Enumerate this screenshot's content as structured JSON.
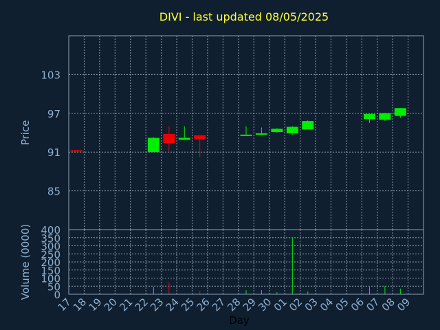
{
  "chart_data": [
    {
      "type": "candlestick",
      "title": "DIVI - last updated 08/05/2025",
      "xlabel": "Day",
      "ylabel": "Price",
      "ylim": [
        79,
        109
      ],
      "yticks": [
        85,
        91,
        97,
        103
      ],
      "grid": true,
      "x_categories": [
        "17",
        "18",
        "19",
        "20",
        "21",
        "22",
        "23",
        "24",
        "25",
        "26",
        "27",
        "28",
        "29",
        "30",
        "01",
        "02",
        "03",
        "04",
        "05",
        "06",
        "07",
        "08",
        "09"
      ],
      "candles": [
        {
          "x": "17",
          "open": 91.3,
          "close": 91.1,
          "high": 91.3,
          "low": 91.1
        },
        {
          "x": "22",
          "open": 91.0,
          "close": 93.2,
          "high": 93.3,
          "low": 91.0
        },
        {
          "x": "23",
          "open": 93.8,
          "close": 92.4,
          "high": 95.0,
          "low": 91.0
        },
        {
          "x": "24",
          "open": 92.9,
          "close": 93.2,
          "high": 95.0,
          "low": 92.9
        },
        {
          "x": "25",
          "open": 93.6,
          "close": 93.0,
          "high": 93.6,
          "low": 90.2
        },
        {
          "x": "28",
          "open": 93.5,
          "close": 93.7,
          "high": 95.0,
          "low": 93.5
        },
        {
          "x": "29",
          "open": 93.7,
          "close": 93.9,
          "high": 94.8,
          "low": 93.6
        },
        {
          "x": "30",
          "open": 94.1,
          "close": 94.6,
          "high": 94.7,
          "low": 94.0
        },
        {
          "x": "01",
          "open": 93.9,
          "close": 94.9,
          "high": 95.0,
          "low": 93.7
        },
        {
          "x": "02",
          "open": 94.5,
          "close": 95.8,
          "high": 95.9,
          "low": 94.5
        },
        {
          "x": "06",
          "open": 96.1,
          "close": 96.9,
          "high": 96.9,
          "low": 95.5
        },
        {
          "x": "07",
          "open": 96.0,
          "close": 97.0,
          "high": 97.1,
          "low": 95.8
        },
        {
          "x": "08",
          "open": 96.6,
          "close": 97.8,
          "high": 97.8,
          "low": 96.3
        }
      ]
    },
    {
      "type": "bar",
      "ylabel": "Volume (0000)",
      "ylim": [
        0,
        400
      ],
      "yticks": [
        0,
        50,
        100,
        150,
        200,
        250,
        300,
        350,
        400
      ],
      "grid": true,
      "categories": [
        "17",
        "18",
        "19",
        "20",
        "21",
        "22",
        "23",
        "24",
        "25",
        "26",
        "27",
        "28",
        "29",
        "30",
        "01",
        "02",
        "03",
        "04",
        "05",
        "06",
        "07",
        "08",
        "09"
      ],
      "values": [
        5,
        0,
        0,
        0,
        0,
        45,
        75,
        3,
        20,
        0,
        0,
        25,
        25,
        12,
        350,
        18,
        0,
        0,
        0,
        45,
        50,
        35,
        0
      ],
      "directions": [
        "down",
        "",
        "",
        "",
        "",
        "up",
        "down",
        "up",
        "down",
        "",
        "",
        "up",
        "up",
        "up",
        "up",
        "up",
        "",
        "",
        "",
        "up",
        "up",
        "up",
        ""
      ]
    }
  ],
  "colors": {
    "background": "#0f1f30",
    "plot_border": "#8ea3b8",
    "grid": "#c8d2dc",
    "title": "#ffff33",
    "axis_text": "#8fb0cf",
    "xlabel_text": "#000000",
    "up": "#00ee00",
    "down": "#ee0000"
  }
}
